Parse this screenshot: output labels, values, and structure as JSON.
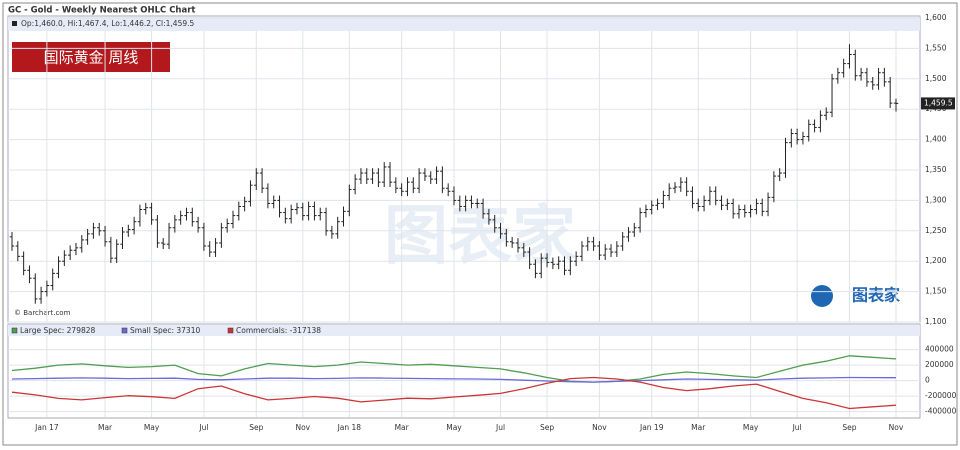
{
  "chart_data": [
    {
      "type": "ohlc",
      "title": "GC - Gold - Weekly Nearest OHLC Chart",
      "legend": "Op:1,460.0, Hi:1,467.4, Lo:1,446.2, Cl:1,459.5",
      "badge": "国际黄金 周线",
      "source": "© Barchart.com",
      "watermark": "图表家",
      "xlim": [
        0,
        152
      ],
      "ylim": [
        1100,
        1600
      ],
      "yticks": [
        {
          "value": 1100,
          "label": "1,100"
        },
        {
          "value": 1150,
          "label": "1,150"
        },
        {
          "value": 1200,
          "label": "1,200"
        },
        {
          "value": 1250,
          "label": "1,250"
        },
        {
          "value": 1300,
          "label": "1,300"
        },
        {
          "value": 1350,
          "label": "1,350"
        },
        {
          "value": 1400,
          "label": "1,400"
        },
        {
          "value": 1450,
          "label": "1,450"
        },
        {
          "value": 1500,
          "label": "1,500"
        },
        {
          "value": 1550,
          "label": "1,550"
        },
        {
          "value": 1600,
          "label": "1,600"
        }
      ],
      "grid": true,
      "color": "#222222",
      "open": [
        1240,
        1225,
        1208,
        1185,
        1172,
        1138,
        1150,
        1160,
        1180,
        1200,
        1210,
        1218,
        1222,
        1235,
        1245,
        1255,
        1250,
        1232,
        1205,
        1228,
        1248,
        1252,
        1265,
        1285,
        1288,
        1268,
        1230,
        1228,
        1255,
        1268,
        1275,
        1280,
        1265,
        1255,
        1225,
        1215,
        1230,
        1255,
        1262,
        1275,
        1290,
        1298,
        1325,
        1345,
        1320,
        1295,
        1300,
        1280,
        1270,
        1285,
        1288,
        1275,
        1290,
        1275,
        1280,
        1250,
        1245,
        1265,
        1282,
        1318,
        1335,
        1345,
        1335,
        1345,
        1330,
        1355,
        1330,
        1320,
        1315,
        1330,
        1320,
        1345,
        1340,
        1335,
        1348,
        1320,
        1315,
        1300,
        1290,
        1300,
        1295,
        1295,
        1278,
        1268,
        1255,
        1245,
        1232,
        1230,
        1222,
        1215,
        1195,
        1180,
        1205,
        1198,
        1195,
        1200,
        1185,
        1200,
        1208,
        1225,
        1232,
        1225,
        1210,
        1220,
        1215,
        1225,
        1240,
        1248,
        1255,
        1280,
        1285,
        1292,
        1295,
        1308,
        1320,
        1322,
        1330,
        1315,
        1295,
        1290,
        1300,
        1315,
        1300,
        1292,
        1295,
        1278,
        1285,
        1280,
        1285,
        1295,
        1282,
        1305,
        1340,
        1345,
        1395,
        1410,
        1400,
        1405,
        1425,
        1420,
        1440,
        1445,
        1500,
        1510,
        1525,
        1540,
        1505,
        1510,
        1495,
        1490,
        1510,
        1495,
        1460.0
      ],
      "high": [
        1248,
        1233,
        1216,
        1193,
        1180,
        1158,
        1168,
        1188,
        1208,
        1218,
        1226,
        1230,
        1243,
        1253,
        1263,
        1263,
        1258,
        1240,
        1236,
        1256,
        1260,
        1273,
        1293,
        1296,
        1296,
        1276,
        1238,
        1263,
        1276,
        1283,
        1288,
        1288,
        1273,
        1263,
        1233,
        1238,
        1263,
        1270,
        1283,
        1298,
        1306,
        1333,
        1353,
        1353,
        1328,
        1308,
        1308,
        1288,
        1293,
        1296,
        1296,
        1298,
        1298,
        1288,
        1288,
        1258,
        1273,
        1290,
        1326,
        1343,
        1353,
        1353,
        1353,
        1353,
        1363,
        1363,
        1338,
        1328,
        1338,
        1338,
        1353,
        1353,
        1348,
        1356,
        1356,
        1328,
        1323,
        1308,
        1308,
        1308,
        1303,
        1303,
        1286,
        1276,
        1263,
        1253,
        1240,
        1238,
        1230,
        1223,
        1203,
        1213,
        1213,
        1206,
        1208,
        1208,
        1208,
        1216,
        1233,
        1240,
        1240,
        1233,
        1228,
        1228,
        1233,
        1248,
        1256,
        1263,
        1288,
        1293,
        1300,
        1303,
        1316,
        1328,
        1330,
        1338,
        1338,
        1323,
        1303,
        1308,
        1323,
        1323,
        1308,
        1303,
        1303,
        1293,
        1293,
        1293,
        1303,
        1303,
        1313,
        1348,
        1353,
        1403,
        1418,
        1418,
        1413,
        1433,
        1433,
        1448,
        1453,
        1508,
        1518,
        1533,
        1557,
        1548,
        1518,
        1518,
        1503,
        1518,
        1518,
        1503,
        1467.4
      ],
      "low": [
        1217,
        1200,
        1177,
        1164,
        1130,
        1130,
        1142,
        1152,
        1172,
        1192,
        1202,
        1210,
        1214,
        1227,
        1237,
        1242,
        1224,
        1197,
        1197,
        1220,
        1240,
        1244,
        1257,
        1277,
        1260,
        1222,
        1220,
        1220,
        1247,
        1260,
        1267,
        1257,
        1247,
        1217,
        1207,
        1207,
        1222,
        1247,
        1254,
        1267,
        1282,
        1290,
        1317,
        1312,
        1287,
        1287,
        1272,
        1262,
        1262,
        1277,
        1267,
        1267,
        1267,
        1267,
        1242,
        1237,
        1237,
        1257,
        1274,
        1310,
        1327,
        1327,
        1327,
        1322,
        1322,
        1322,
        1312,
        1307,
        1307,
        1312,
        1312,
        1332,
        1327,
        1327,
        1312,
        1307,
        1292,
        1282,
        1282,
        1287,
        1287,
        1270,
        1260,
        1247,
        1237,
        1224,
        1222,
        1214,
        1207,
        1187,
        1172,
        1172,
        1190,
        1187,
        1187,
        1177,
        1177,
        1192,
        1200,
        1217,
        1217,
        1202,
        1202,
        1207,
        1207,
        1217,
        1232,
        1240,
        1247,
        1272,
        1277,
        1284,
        1287,
        1300,
        1312,
        1314,
        1307,
        1287,
        1282,
        1282,
        1292,
        1292,
        1284,
        1284,
        1270,
        1270,
        1272,
        1272,
        1277,
        1274,
        1274,
        1297,
        1332,
        1337,
        1387,
        1392,
        1392,
        1397,
        1412,
        1412,
        1432,
        1437,
        1492,
        1502,
        1517,
        1497,
        1497,
        1487,
        1482,
        1482,
        1487,
        1452,
        1446.2
      ],
      "close": [
        1225,
        1208,
        1185,
        1172,
        1138,
        1150,
        1160,
        1180,
        1200,
        1210,
        1218,
        1222,
        1235,
        1245,
        1255,
        1250,
        1232,
        1205,
        1228,
        1248,
        1252,
        1265,
        1285,
        1288,
        1268,
        1230,
        1228,
        1255,
        1268,
        1275,
        1280,
        1265,
        1255,
        1225,
        1215,
        1230,
        1255,
        1262,
        1275,
        1290,
        1298,
        1325,
        1345,
        1320,
        1295,
        1300,
        1280,
        1270,
        1285,
        1288,
        1275,
        1290,
        1275,
        1280,
        1250,
        1245,
        1265,
        1282,
        1318,
        1335,
        1345,
        1335,
        1345,
        1330,
        1355,
        1330,
        1320,
        1315,
        1330,
        1320,
        1345,
        1340,
        1335,
        1348,
        1320,
        1315,
        1300,
        1290,
        1300,
        1295,
        1295,
        1278,
        1268,
        1255,
        1245,
        1232,
        1230,
        1222,
        1215,
        1195,
        1180,
        1205,
        1198,
        1195,
        1200,
        1185,
        1200,
        1208,
        1225,
        1232,
        1225,
        1210,
        1220,
        1215,
        1225,
        1240,
        1248,
        1255,
        1280,
        1285,
        1292,
        1295,
        1308,
        1320,
        1322,
        1330,
        1315,
        1295,
        1290,
        1300,
        1315,
        1300,
        1292,
        1295,
        1278,
        1285,
        1280,
        1285,
        1295,
        1282,
        1305,
        1340,
        1345,
        1395,
        1410,
        1400,
        1405,
        1425,
        1420,
        1440,
        1445,
        1500,
        1510,
        1525,
        1540,
        1505,
        1510,
        1495,
        1490,
        1510,
        1495,
        1460,
        1459.5
      ],
      "value_labels": [
        null,
        null,
        null,
        null,
        null,
        null,
        null,
        null,
        null,
        null,
        null,
        null,
        null,
        null,
        null,
        null,
        null,
        null,
        null,
        null,
        null,
        null,
        null,
        null,
        null,
        null,
        null,
        null,
        null,
        null,
        null,
        null,
        null,
        null,
        null,
        null,
        null,
        null,
        null,
        null,
        null,
        null,
        null,
        null,
        null,
        null,
        null,
        null,
        null,
        null,
        null,
        null,
        null,
        null,
        null,
        null,
        null,
        null,
        null,
        null,
        null,
        null,
        null,
        null,
        null,
        null,
        null,
        null,
        null,
        null,
        null,
        null,
        null,
        null,
        null,
        null,
        null,
        null,
        null,
        null,
        null,
        null,
        null,
        null,
        null,
        null,
        null,
        null,
        null,
        null,
        null,
        null,
        null,
        null,
        null,
        null,
        null,
        null,
        null,
        null,
        null,
        null,
        null,
        null,
        null,
        null,
        null,
        null,
        null,
        null,
        null,
        null,
        null,
        null,
        null,
        null,
        null,
        null,
        null,
        null,
        null,
        null,
        null,
        null,
        null,
        null,
        null,
        null,
        null,
        null,
        null,
        null,
        null,
        null,
        null,
        null,
        null,
        null,
        null,
        null,
        null,
        null,
        null,
        null,
        null,
        null,
        null,
        null,
        null,
        null,
        null,
        null,
        "1,459.5"
      ]
    },
    {
      "type": "line",
      "xlim": [
        0,
        152
      ],
      "xticks": [
        {
          "value": 6,
          "label": "Jan 17"
        },
        {
          "value": 16,
          "label": "Mar"
        },
        {
          "value": 24,
          "label": "May"
        },
        {
          "value": 33,
          "label": "Jul"
        },
        {
          "value": 42,
          "label": "Sep"
        },
        {
          "value": 50,
          "label": "Nov"
        },
        {
          "value": 58,
          "label": "Jan 18"
        },
        {
          "value": 67,
          "label": "Mar"
        },
        {
          "value": 76,
          "label": "May"
        },
        {
          "value": 84,
          "label": "Jul"
        },
        {
          "value": 92,
          "label": "Sep"
        },
        {
          "value": 101,
          "label": "Nov"
        },
        {
          "value": 110,
          "label": "Jan 19"
        },
        {
          "value": 118,
          "label": "Mar"
        },
        {
          "value": 127,
          "label": "May"
        },
        {
          "value": 135,
          "label": "Jul"
        },
        {
          "value": 144,
          "label": "Sep"
        },
        {
          "value": 152,
          "label": "Nov"
        }
      ],
      "ylim": [
        -470000,
        575000
      ],
      "yticks": [
        -400000,
        -200000,
        0,
        200000,
        400000
      ],
      "grid": true,
      "x": [
        0,
        4,
        8,
        12,
        16,
        20,
        24,
        28,
        32,
        36,
        40,
        44,
        48,
        52,
        56,
        60,
        64,
        68,
        72,
        76,
        80,
        84,
        88,
        92,
        96,
        100,
        104,
        108,
        112,
        116,
        120,
        124,
        128,
        132,
        136,
        140,
        144,
        148,
        152
      ],
      "series": [
        {
          "name": "Large Spec: 279828",
          "color": "#4f9d4f",
          "values": [
            130000,
            160000,
            200000,
            215000,
            190000,
            170000,
            180000,
            200000,
            90000,
            60000,
            150000,
            220000,
            200000,
            180000,
            200000,
            240000,
            220000,
            200000,
            210000,
            190000,
            170000,
            150000,
            100000,
            40000,
            -10000,
            -20000,
            -10000,
            20000,
            80000,
            110000,
            90000,
            60000,
            40000,
            120000,
            200000,
            250000,
            320000,
            300000,
            279828
          ]
        },
        {
          "name": "Small Spec: 37310",
          "color": "#6a6ad8",
          "values": [
            20000,
            25000,
            30000,
            35000,
            30000,
            25000,
            28000,
            30000,
            15000,
            10000,
            20000,
            30000,
            30000,
            25000,
            28000,
            35000,
            32000,
            28000,
            25000,
            22000,
            20000,
            15000,
            5000,
            -5000,
            -15000,
            -20000,
            -10000,
            0,
            10000,
            20000,
            15000,
            10000,
            5000,
            20000,
            30000,
            35000,
            40000,
            38000,
            37310
          ]
        },
        {
          "name": "Commercials: -317138",
          "color": "#cc3535",
          "values": [
            -150000,
            -185000,
            -230000,
            -250000,
            -220000,
            -195000,
            -208000,
            -230000,
            -105000,
            -70000,
            -170000,
            -250000,
            -230000,
            -205000,
            -228000,
            -275000,
            -252000,
            -228000,
            -235000,
            -212000,
            -190000,
            -165000,
            -105000,
            -35000,
            25000,
            40000,
            20000,
            -20000,
            -90000,
            -130000,
            -105000,
            -70000,
            -45000,
            -140000,
            -230000,
            -285000,
            -360000,
            -338000,
            -317138
          ]
        }
      ]
    }
  ]
}
